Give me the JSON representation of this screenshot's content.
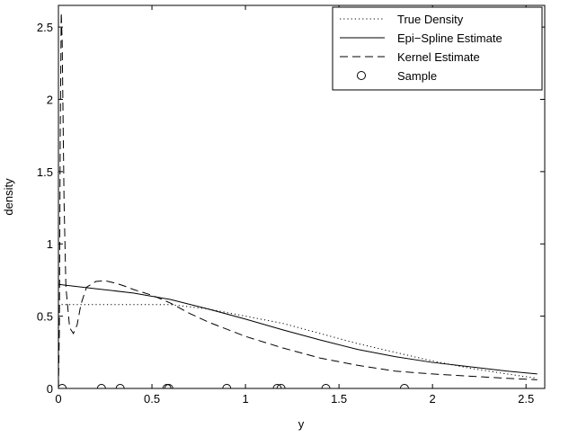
{
  "chart_data": {
    "type": "line",
    "xlabel": "y",
    "ylabel": "density",
    "xlim": [
      0,
      2.6
    ],
    "ylim": [
      0,
      2.65
    ],
    "x_ticks": [
      0,
      0.5,
      1,
      1.5,
      2,
      2.5
    ],
    "x_tick_labels": [
      "0",
      "0.5",
      "1",
      "1.5",
      "2",
      "2.5"
    ],
    "y_ticks": [
      0,
      0.5,
      1,
      1.5,
      2,
      2.5
    ],
    "y_tick_labels": [
      "0",
      "0.5",
      "1",
      "1.5",
      "2",
      "2.5"
    ],
    "grid": false,
    "legend_position": "top-right",
    "series": [
      {
        "name": "True Density",
        "style": "dotted",
        "x": [
          0,
          0.001,
          0.01,
          0.1,
          0.2,
          0.3,
          0.4,
          0.5,
          0.6,
          0.7,
          0.8,
          1.0,
          1.2,
          1.4,
          1.6,
          1.8,
          2.0,
          2.2,
          2.4,
          2.56
        ],
        "y": [
          0,
          0.58,
          0.58,
          0.58,
          0.58,
          0.58,
          0.58,
          0.58,
          0.58,
          0.565,
          0.55,
          0.5,
          0.45,
          0.38,
          0.31,
          0.25,
          0.19,
          0.14,
          0.1,
          0.07
        ]
      },
      {
        "name": "Epi−Spline Estimate",
        "style": "solid",
        "x": [
          0,
          0.2,
          0.4,
          0.6,
          0.8,
          1.0,
          1.2,
          1.4,
          1.6,
          1.8,
          2.0,
          2.2,
          2.4,
          2.56
        ],
        "y": [
          0.72,
          0.69,
          0.66,
          0.615,
          0.55,
          0.48,
          0.405,
          0.335,
          0.27,
          0.22,
          0.18,
          0.15,
          0.12,
          0.1
        ]
      },
      {
        "name": "Kernel Estimate",
        "style": "dashed",
        "x": [
          0,
          0.005,
          0.01,
          0.015,
          0.02,
          0.03,
          0.04,
          0.06,
          0.08,
          0.1,
          0.12,
          0.15,
          0.2,
          0.25,
          0.3,
          0.35,
          0.4,
          0.5,
          0.6,
          0.7,
          0.8,
          1.0,
          1.2,
          1.4,
          1.6,
          1.8,
          2.0,
          2.2,
          2.4,
          2.56
        ],
        "y": [
          0,
          0.4,
          1.8,
          2.6,
          2.4,
          1.3,
          0.7,
          0.42,
          0.38,
          0.44,
          0.58,
          0.7,
          0.74,
          0.745,
          0.73,
          0.71,
          0.685,
          0.645,
          0.59,
          0.52,
          0.46,
          0.36,
          0.28,
          0.21,
          0.16,
          0.12,
          0.1,
          0.085,
          0.07,
          0.06
        ]
      },
      {
        "name": "Sample",
        "style": "markers",
        "x": [
          0.02,
          0.23,
          0.33,
          0.58,
          0.59,
          0.9,
          1.17,
          1.19,
          1.43,
          1.85
        ],
        "y": [
          0,
          0,
          0,
          0,
          0,
          0,
          0,
          0,
          0,
          0
        ]
      }
    ]
  }
}
